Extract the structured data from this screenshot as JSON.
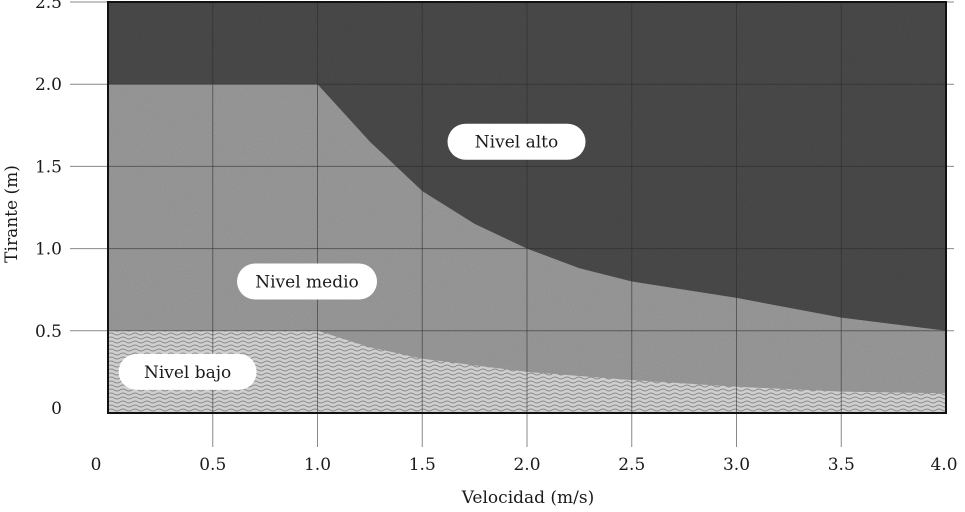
{
  "chart_data": {
    "type": "area",
    "title": "",
    "xlabel": "Velocidad (m/s)",
    "ylabel": "Tirante (m)",
    "xlim": [
      0,
      4.0
    ],
    "ylim": [
      0,
      2.5
    ],
    "x_ticks": [
      0,
      0.5,
      1.0,
      1.5,
      2.0,
      2.5,
      3.0,
      3.5,
      4.0
    ],
    "x_tick_labels": [
      "0",
      "0.5",
      "1.0",
      "1.5",
      "2.0",
      "2.5",
      "3.0",
      "3.5",
      "4.0"
    ],
    "y_ticks": [
      0,
      0.5,
      1.0,
      1.5,
      2.0,
      2.5
    ],
    "y_tick_labels": [
      "0",
      "0.5",
      "1.0",
      "1.5",
      "2.0",
      "2.5"
    ],
    "grid": true,
    "regions": [
      {
        "name": "Nivel alto",
        "color": "#4a4a4a",
        "label_at": {
          "x": 1.95,
          "y": 1.65
        }
      },
      {
        "name": "Nivel medio",
        "color": "#9a9a9a",
        "label_at": {
          "x": 0.95,
          "y": 0.8
        }
      },
      {
        "name": "Nivel bajo",
        "color": "#c8c8c8",
        "label_at": {
          "x": 0.38,
          "y": 0.25
        }
      }
    ],
    "boundaries": [
      {
        "between": [
          "Nivel alto",
          "Nivel medio"
        ],
        "x": [
          0,
          1.0,
          1.25,
          1.5,
          1.75,
          2.0,
          2.25,
          2.5,
          3.0,
          3.5,
          4.0
        ],
        "y": [
          2.0,
          2.0,
          1.65,
          1.35,
          1.15,
          1.0,
          0.88,
          0.8,
          0.7,
          0.58,
          0.5
        ]
      },
      {
        "between": [
          "Nivel medio",
          "Nivel bajo"
        ],
        "x": [
          0,
          1.0,
          1.25,
          1.5,
          2.0,
          2.5,
          3.0,
          3.5,
          4.0
        ],
        "y": [
          0.5,
          0.5,
          0.4,
          0.33,
          0.25,
          0.2,
          0.16,
          0.13,
          0.12
        ]
      }
    ]
  }
}
